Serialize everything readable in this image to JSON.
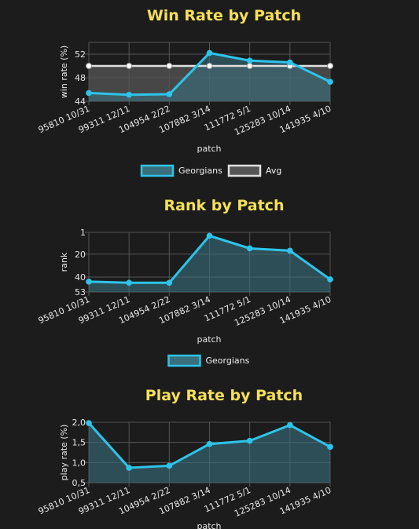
{
  "colors": {
    "background": "#1c1c1c",
    "title": "#f5e05a",
    "series_line": "#2ec4ea",
    "series_fill": "#3a6f7e",
    "avg_line": "#e0e0e0",
    "avg_fill": "#555555",
    "grid": "#555555",
    "text": "#e8e8e8"
  },
  "chart_data": [
    {
      "type": "line",
      "title": "Win Rate by Patch",
      "xlabel": "patch",
      "ylabel": "win rate (%)",
      "categories": [
        "95810 10/31",
        "99311 12/11",
        "104954 2/22",
        "107882 3/14",
        "111772 5/1",
        "125283 10/14",
        "141935 4/10"
      ],
      "yticks": [
        "44",
        "48",
        "52"
      ],
      "ylim": [
        44,
        54
      ],
      "reversed": false,
      "fill_base": "min",
      "grid": true,
      "legend_position": "bottom",
      "series": [
        {
          "name": "Georgians",
          "role": "main",
          "values": [
            45.4,
            45.1,
            45.2,
            52.2,
            50.9,
            50.6,
            47.3
          ]
        },
        {
          "name": "Avg",
          "role": "avg",
          "values": [
            50.0,
            50.0,
            50.0,
            50.0,
            50.0,
            50.0,
            50.0
          ]
        }
      ]
    },
    {
      "type": "line",
      "title": "Rank by Patch",
      "xlabel": "patch",
      "ylabel": "rank",
      "categories": [
        "95810 10/31",
        "99311 12/11",
        "104954 2/22",
        "107882 3/14",
        "111772 5/1",
        "125283 10/14",
        "141935 4/10"
      ],
      "yticks": [
        "1",
        "20",
        "40",
        "53"
      ],
      "ylim": [
        1,
        53
      ],
      "reversed": true,
      "fill_base": "max",
      "grid": true,
      "legend_position": "bottom",
      "series": [
        {
          "name": "Georgians",
          "role": "main",
          "values": [
            44,
            45,
            45,
            4,
            15,
            17,
            42
          ]
        }
      ]
    },
    {
      "type": "line",
      "title": "Play Rate by Patch",
      "xlabel": "patch",
      "ylabel": "play rate (%)",
      "categories": [
        "95810 10/31",
        "99311 12/11",
        "104954 2/22",
        "107882 3/14",
        "111772 5/1",
        "125283 10/14",
        "141935 4/10"
      ],
      "yticks": [
        "0,5",
        "1,0",
        "1,5",
        "2,0"
      ],
      "ylim": [
        0.5,
        2.0
      ],
      "reversed": false,
      "fill_base": "min",
      "grid": true,
      "legend_position": "bottom",
      "series": [
        {
          "name": "",
          "role": "main",
          "values": [
            1.98,
            0.87,
            0.92,
            1.46,
            1.54,
            1.93,
            1.39
          ]
        }
      ]
    }
  ]
}
